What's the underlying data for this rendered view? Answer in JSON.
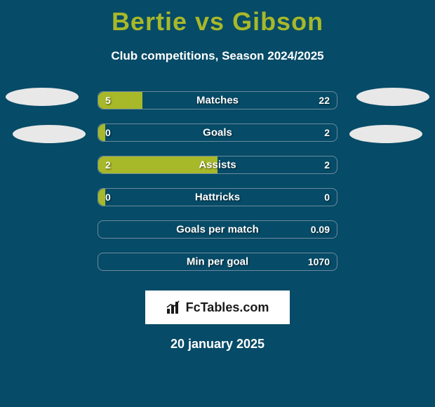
{
  "title": {
    "player1": "Bertie",
    "vs": "vs",
    "player2": "Gibson",
    "color": "#a7b829",
    "fontsize": 36
  },
  "subtitle": "Club competitions, Season 2024/2025",
  "background_color": "#064b67",
  "track_border_color": "#6d8aa0",
  "bar_fill_color": "#a7b829",
  "text_color": "#ffffff",
  "ellipse_color": "#e8e8e8",
  "bars": [
    {
      "label": "Matches",
      "left_value": "5",
      "right_value": "22",
      "left_pct": 18.5,
      "right_pct": 0
    },
    {
      "label": "Goals",
      "left_value": "0",
      "right_value": "2",
      "left_pct": 3,
      "right_pct": 0
    },
    {
      "label": "Assists",
      "left_value": "2",
      "right_value": "2",
      "left_pct": 50,
      "right_pct": 0
    },
    {
      "label": "Hattricks",
      "left_value": "0",
      "right_value": "0",
      "left_pct": 3,
      "right_pct": 0
    },
    {
      "label": "Goals per match",
      "left_value": "",
      "right_value": "0.09",
      "left_pct": 0,
      "right_pct": 0
    },
    {
      "label": "Min per goal",
      "left_value": "",
      "right_value": "1070",
      "left_pct": 0,
      "right_pct": 0
    }
  ],
  "watermark": "FcTables.com",
  "date": "20 january 2025"
}
